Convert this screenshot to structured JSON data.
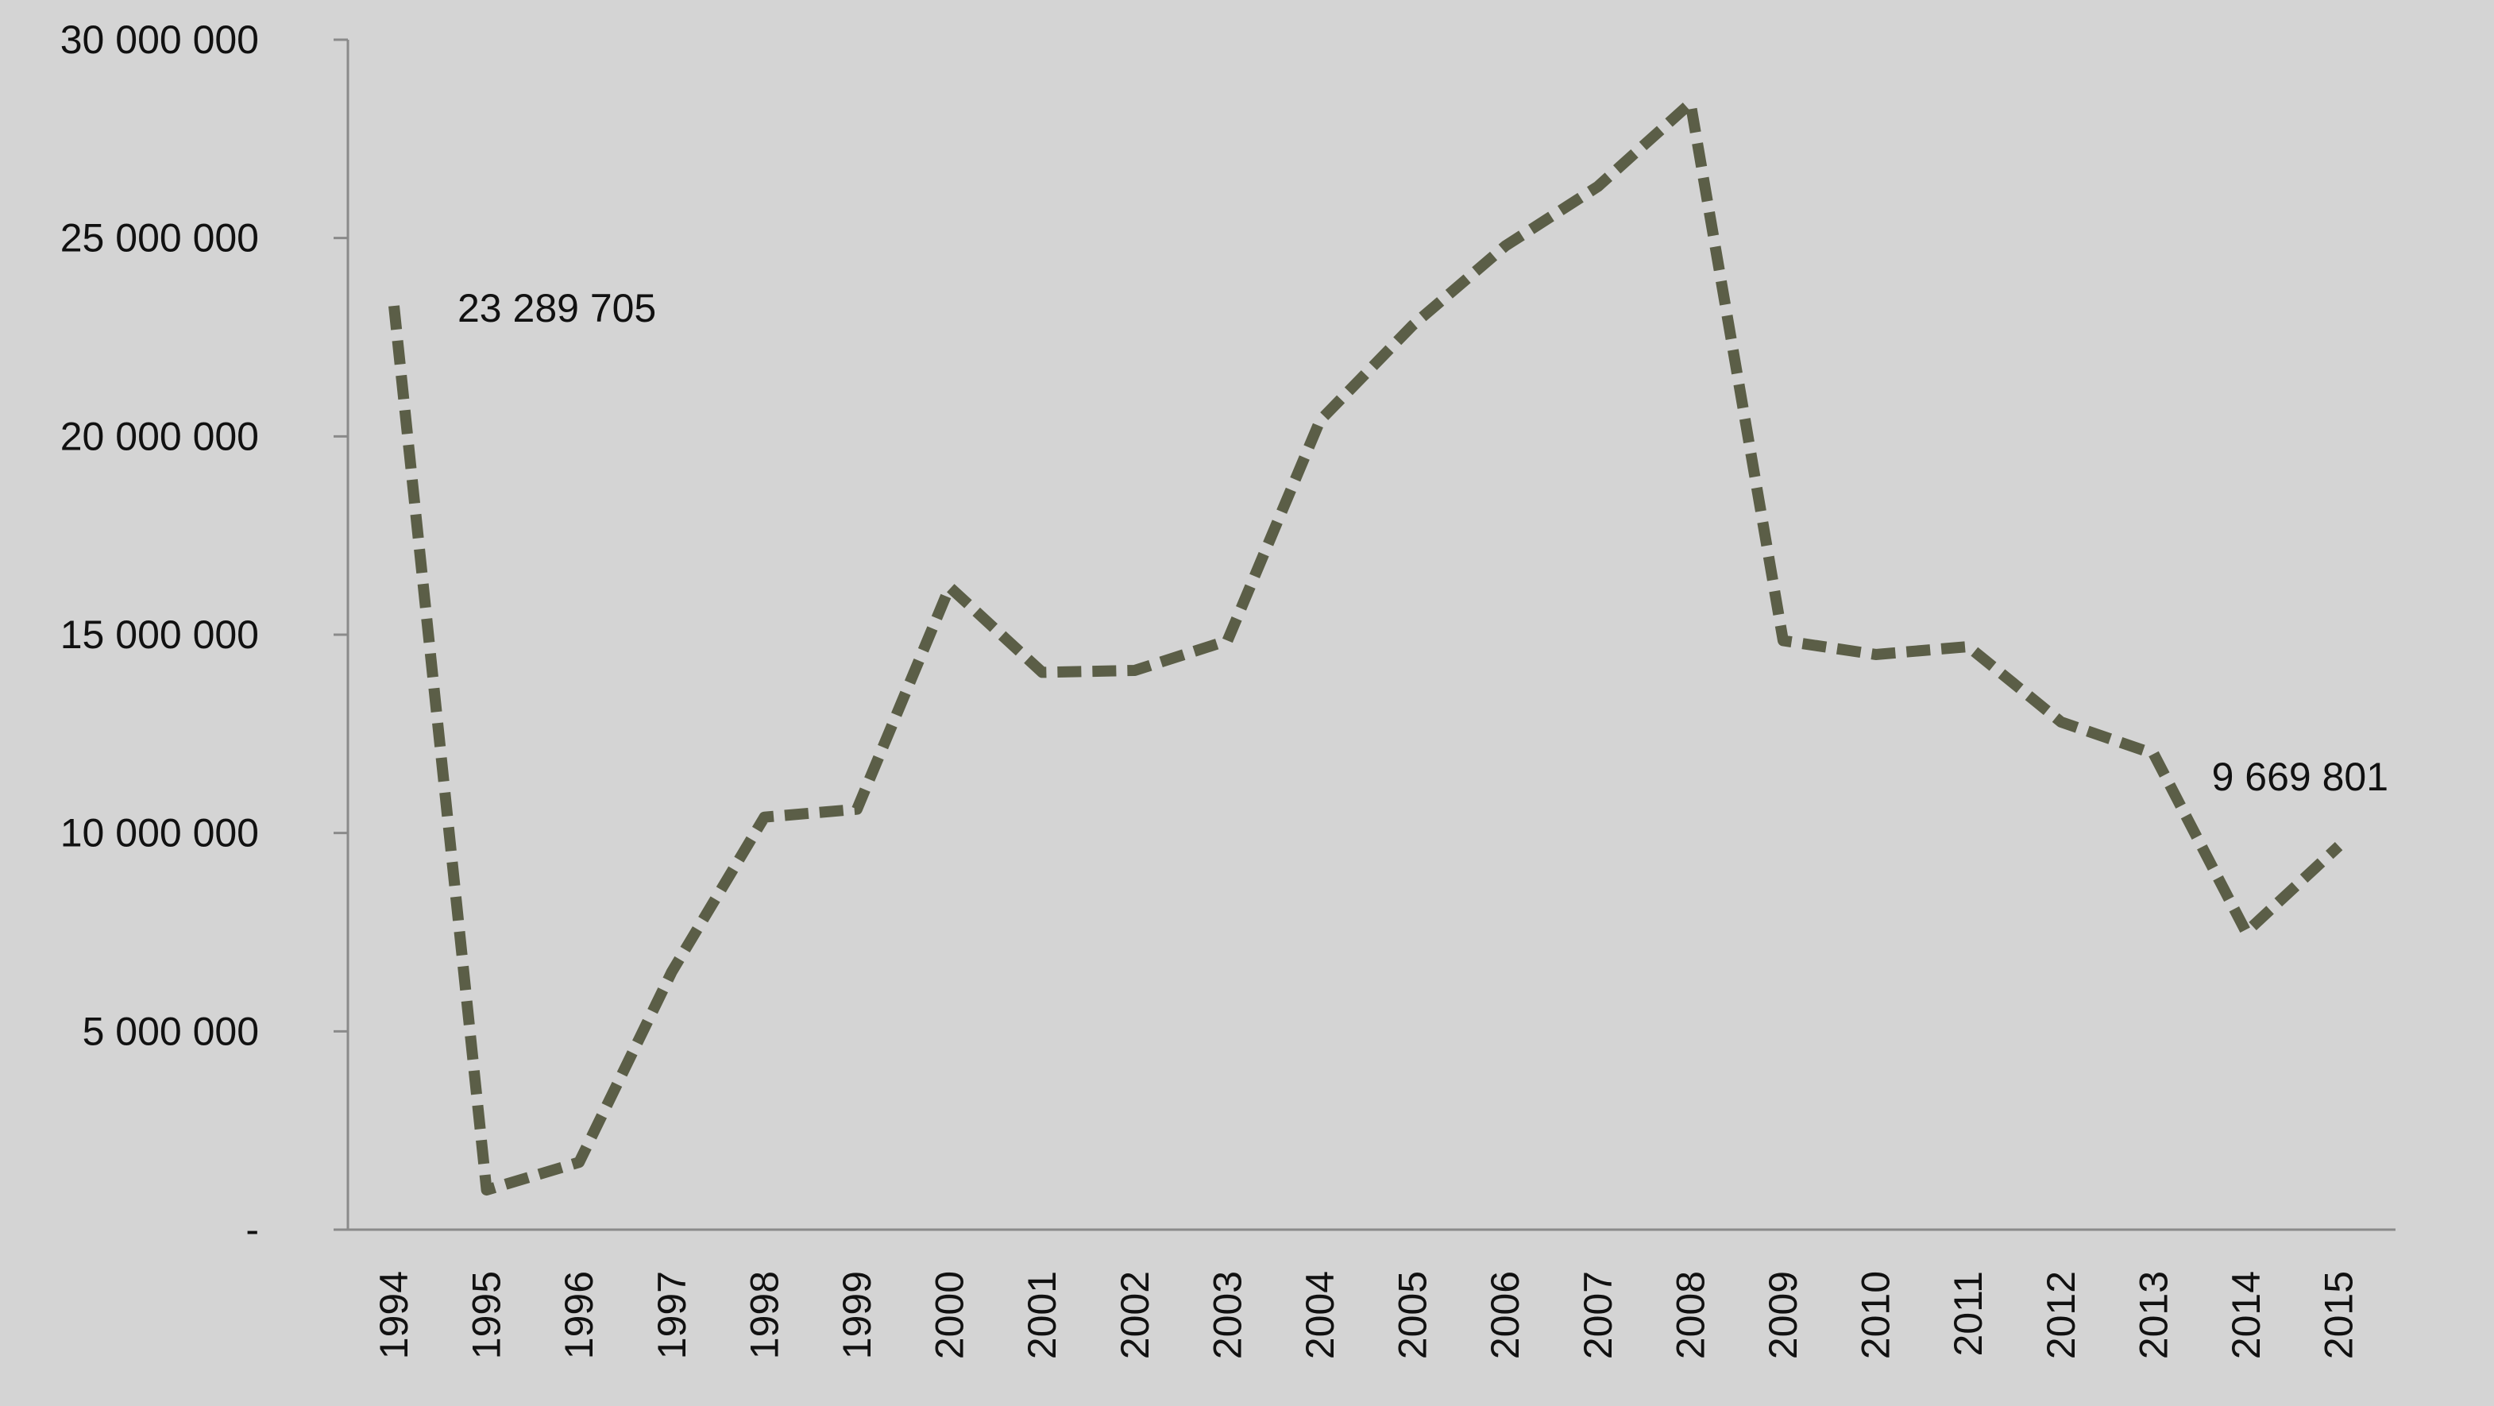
{
  "chart_data": {
    "type": "line",
    "categories": [
      "1994",
      "1995",
      "1996",
      "1997",
      "1998",
      "1999",
      "2000",
      "2001",
      "2002",
      "2003",
      "2004",
      "2005",
      "2006",
      "2007",
      "2008",
      "2009",
      "2010",
      "2011",
      "2012",
      "2013",
      "2014",
      "2015"
    ],
    "series": [
      {
        "values": [
          23289705,
          1000000,
          1700000,
          6500000,
          10400000,
          10600000,
          16200000,
          14050000,
          14100000,
          14850000,
          20400000,
          22800000,
          24800000,
          26300000,
          28400000,
          14850000,
          14500000,
          14700000,
          12800000,
          12000000,
          7500000,
          9669801
        ],
        "color": "#5b5e47",
        "line_style": "dashed"
      }
    ],
    "ylim": [
      0,
      30000000
    ],
    "yticks": [
      0,
      5000000,
      10000000,
      15000000,
      20000000,
      25000000,
      30000000
    ],
    "ytick_labels": [
      "-",
      "5 000 000",
      "10 000 000",
      "15 000 000",
      "20 000 000",
      "25 000 000",
      "30 000 000"
    ],
    "annotations": [
      {
        "index": 0,
        "text": "23 289 705"
      },
      {
        "index": 21,
        "text": "9 669 801"
      }
    ],
    "grid": false,
    "legend": "none",
    "background": "#d4d4d4",
    "axis_color": "#8a8a8a"
  }
}
